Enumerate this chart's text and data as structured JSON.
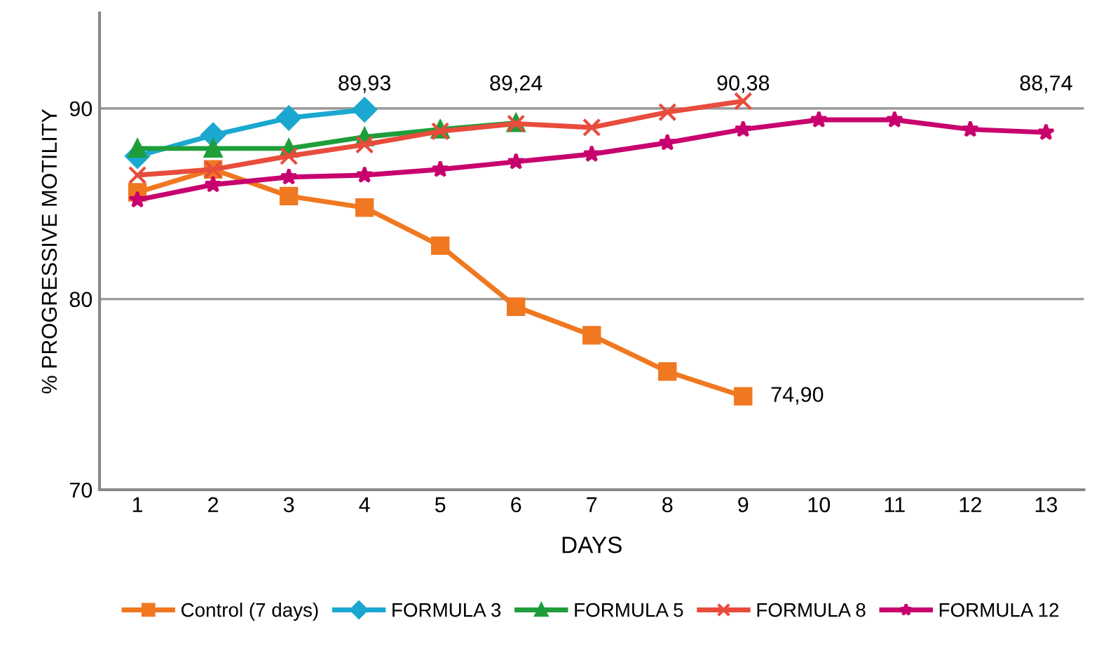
{
  "chart_data": {
    "type": "line",
    "xlabel": "DAYS",
    "ylabel": "% PROGRESSIVE MOTILITY",
    "categories": [
      "1",
      "2",
      "3",
      "4",
      "5",
      "6",
      "7",
      "8",
      "9",
      "10",
      "11",
      "12",
      "13"
    ],
    "ylim": [
      70,
      95
    ],
    "yticks": [
      70,
      80,
      90
    ],
    "grid": "y",
    "legend": "bottom",
    "series": [
      {
        "name": "Control (7 days)",
        "color": "#f07820",
        "marker": "square",
        "values": [
          85.6,
          86.8,
          85.4,
          84.8,
          82.8,
          79.6,
          78.1,
          76.2,
          74.9,
          null,
          null,
          null,
          null
        ],
        "value_labels": [
          null,
          null,
          null,
          null,
          null,
          null,
          null,
          null,
          "74,90",
          null,
          null,
          null,
          null
        ]
      },
      {
        "name": "FORMULA 3",
        "color": "#1aa8d0",
        "marker": "diamond",
        "values": [
          87.5,
          88.6,
          89.5,
          89.93,
          null,
          null,
          null,
          null,
          null,
          null,
          null,
          null,
          null
        ],
        "value_labels": [
          null,
          null,
          null,
          "89,93",
          null,
          null,
          null,
          null,
          null,
          null,
          null,
          null,
          null
        ]
      },
      {
        "name": "FORMULA 5",
        "color": "#1e9e3a",
        "marker": "triangle",
        "values": [
          87.9,
          87.9,
          87.9,
          88.5,
          88.9,
          89.24,
          null,
          null,
          null,
          null,
          null,
          null,
          null
        ],
        "value_labels": [
          null,
          null,
          null,
          null,
          null,
          "89,24",
          null,
          null,
          null,
          null,
          null,
          null,
          null
        ]
      },
      {
        "name": "FORMULA 8",
        "color": "#e84c3c",
        "marker": "cross",
        "values": [
          86.5,
          86.8,
          87.5,
          88.1,
          88.8,
          89.2,
          89.0,
          89.8,
          90.38,
          null,
          null,
          null,
          null
        ],
        "value_labels": [
          null,
          null,
          null,
          null,
          null,
          null,
          null,
          null,
          "90,38",
          null,
          null,
          null,
          null
        ]
      },
      {
        "name": "FORMULA 12",
        "color": "#c8006e",
        "marker": "star",
        "values": [
          85.2,
          86.0,
          86.4,
          86.5,
          86.8,
          87.2,
          87.6,
          88.2,
          88.9,
          89.4,
          89.4,
          88.9,
          88.74
        ],
        "value_labels": [
          null,
          null,
          null,
          null,
          null,
          null,
          null,
          null,
          null,
          null,
          null,
          null,
          "88,74"
        ]
      }
    ]
  }
}
